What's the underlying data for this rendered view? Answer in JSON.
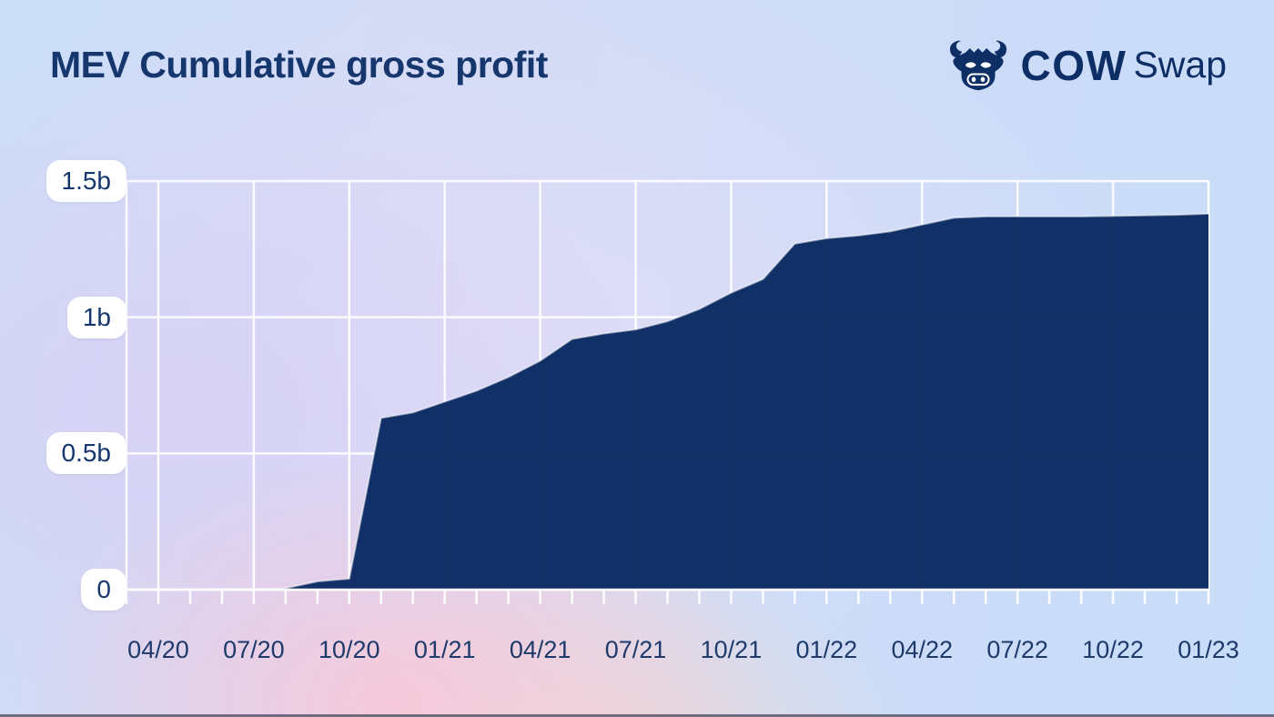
{
  "header": {
    "title": "MEV Cumulative gross profit"
  },
  "logo": {
    "icon": "cow-head-icon",
    "brand_bold": "COW",
    "brand_light": "Swap"
  },
  "colors": {
    "area_fill": "#0a2a62",
    "title_text": "#16366e",
    "axis_text": "#1e3a6b",
    "gridline": "#ffffff",
    "label_pill_bg": "#ffffff",
    "background_blue": "#cbdff8",
    "background_pink": "#f8d9e6",
    "background_lavender": "#dcd6f4",
    "bottom_border": "#6e6b80"
  },
  "chart_data": {
    "type": "area",
    "title": "MEV Cumulative gross profit",
    "x": [
      "03/20",
      "04/20",
      "05/20",
      "06/20",
      "07/20",
      "08/20",
      "09/20",
      "10/20",
      "11/20",
      "12/20",
      "01/21",
      "02/21",
      "03/21",
      "04/21",
      "05/21",
      "06/21",
      "07/21",
      "08/21",
      "09/21",
      "10/21",
      "11/21",
      "12/21",
      "01/22",
      "02/22",
      "03/22",
      "04/22",
      "05/22",
      "06/22",
      "07/22",
      "08/22",
      "09/22",
      "10/22",
      "11/22",
      "12/22",
      "01/23"
    ],
    "values": [
      0,
      0,
      0,
      0,
      0,
      0.005,
      0.03,
      0.04,
      0.63,
      0.65,
      0.69,
      0.73,
      0.78,
      0.84,
      0.92,
      0.94,
      0.955,
      0.985,
      1.03,
      1.09,
      1.14,
      1.27,
      1.29,
      1.3,
      1.315,
      1.34,
      1.365,
      1.37,
      1.37,
      1.37,
      1.37,
      1.372,
      1.374,
      1.376,
      1.38
    ],
    "x_tick_indices": [
      1,
      4,
      7,
      10,
      13,
      16,
      19,
      22,
      25,
      28,
      31,
      34
    ],
    "x_tick_labels": [
      "04/20",
      "07/20",
      "10/20",
      "01/21",
      "04/21",
      "07/21",
      "10/21",
      "01/22",
      "04/22",
      "07/22",
      "10/22",
      "01/23"
    ],
    "y_ticks": [
      {
        "value": 0,
        "label": "0"
      },
      {
        "value": 0.5,
        "label": "0.5b"
      },
      {
        "value": 1,
        "label": "1b"
      },
      {
        "value": 1.5,
        "label": "1.5b"
      }
    ],
    "ylim": [
      0,
      1.5
    ],
    "grid": true,
    "legend": false,
    "area_color": "#0a2a62"
  }
}
